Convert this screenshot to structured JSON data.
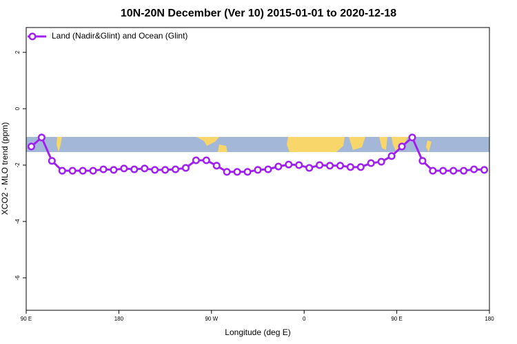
{
  "chart_data": {
    "type": "line",
    "title": "10N-20N December (Ver 10)   2015-01-01 to 2020-12-18",
    "x_label": "Longitude (deg E)",
    "y_label": "XCO2 - MLO trend (ppm)",
    "xlim": [
      90,
      540
    ],
    "xticks": [
      {
        "value": 90,
        "label": "90 E"
      },
      180,
      {
        "value": 270,
        "label": "90 W"
      },
      {
        "value": 360,
        "label": "0"
      },
      {
        "value": 450,
        "label": "90 E"
      },
      {
        "value": 540,
        "label": "180"
      }
    ],
    "ylim": [
      -7.15,
      2.88
    ],
    "yticks": [
      2,
      0,
      -2,
      -4,
      -6
    ],
    "legend": "top-left",
    "x": [
      95,
      105,
      115,
      125,
      135,
      145,
      155,
      165,
      175,
      185,
      195,
      205,
      215,
      225,
      235,
      245,
      255,
      265,
      275,
      285,
      295,
      305,
      315,
      325,
      335,
      345,
      355,
      365,
      375,
      385,
      395,
      405,
      415,
      425,
      435,
      445,
      455,
      465,
      475,
      485,
      495,
      505,
      515,
      525,
      535
    ],
    "series": [
      {
        "name": "Land (Nadir&Glint) and Ocean (Glint)",
        "color": "#a020f0",
        "values": [
          -1.34,
          -1.02,
          -1.85,
          -2.2,
          -2.2,
          -2.2,
          -2.2,
          -2.15,
          -2.17,
          -2.12,
          -2.15,
          -2.12,
          -2.17,
          -2.17,
          -2.15,
          -2.1,
          -1.83,
          -1.83,
          -2.02,
          -2.24,
          -2.24,
          -2.24,
          -2.17,
          -2.15,
          -2.05,
          -1.98,
          -2.0,
          -2.1,
          -2.0,
          -2.02,
          -2.02,
          -2.07,
          -2.07,
          -1.93,
          -1.88,
          -1.68,
          -1.34,
          -1.02,
          -1.85,
          -2.2,
          -2.2,
          -2.2,
          -2.2,
          -2.15,
          -2.17
        ]
      }
    ]
  }
}
